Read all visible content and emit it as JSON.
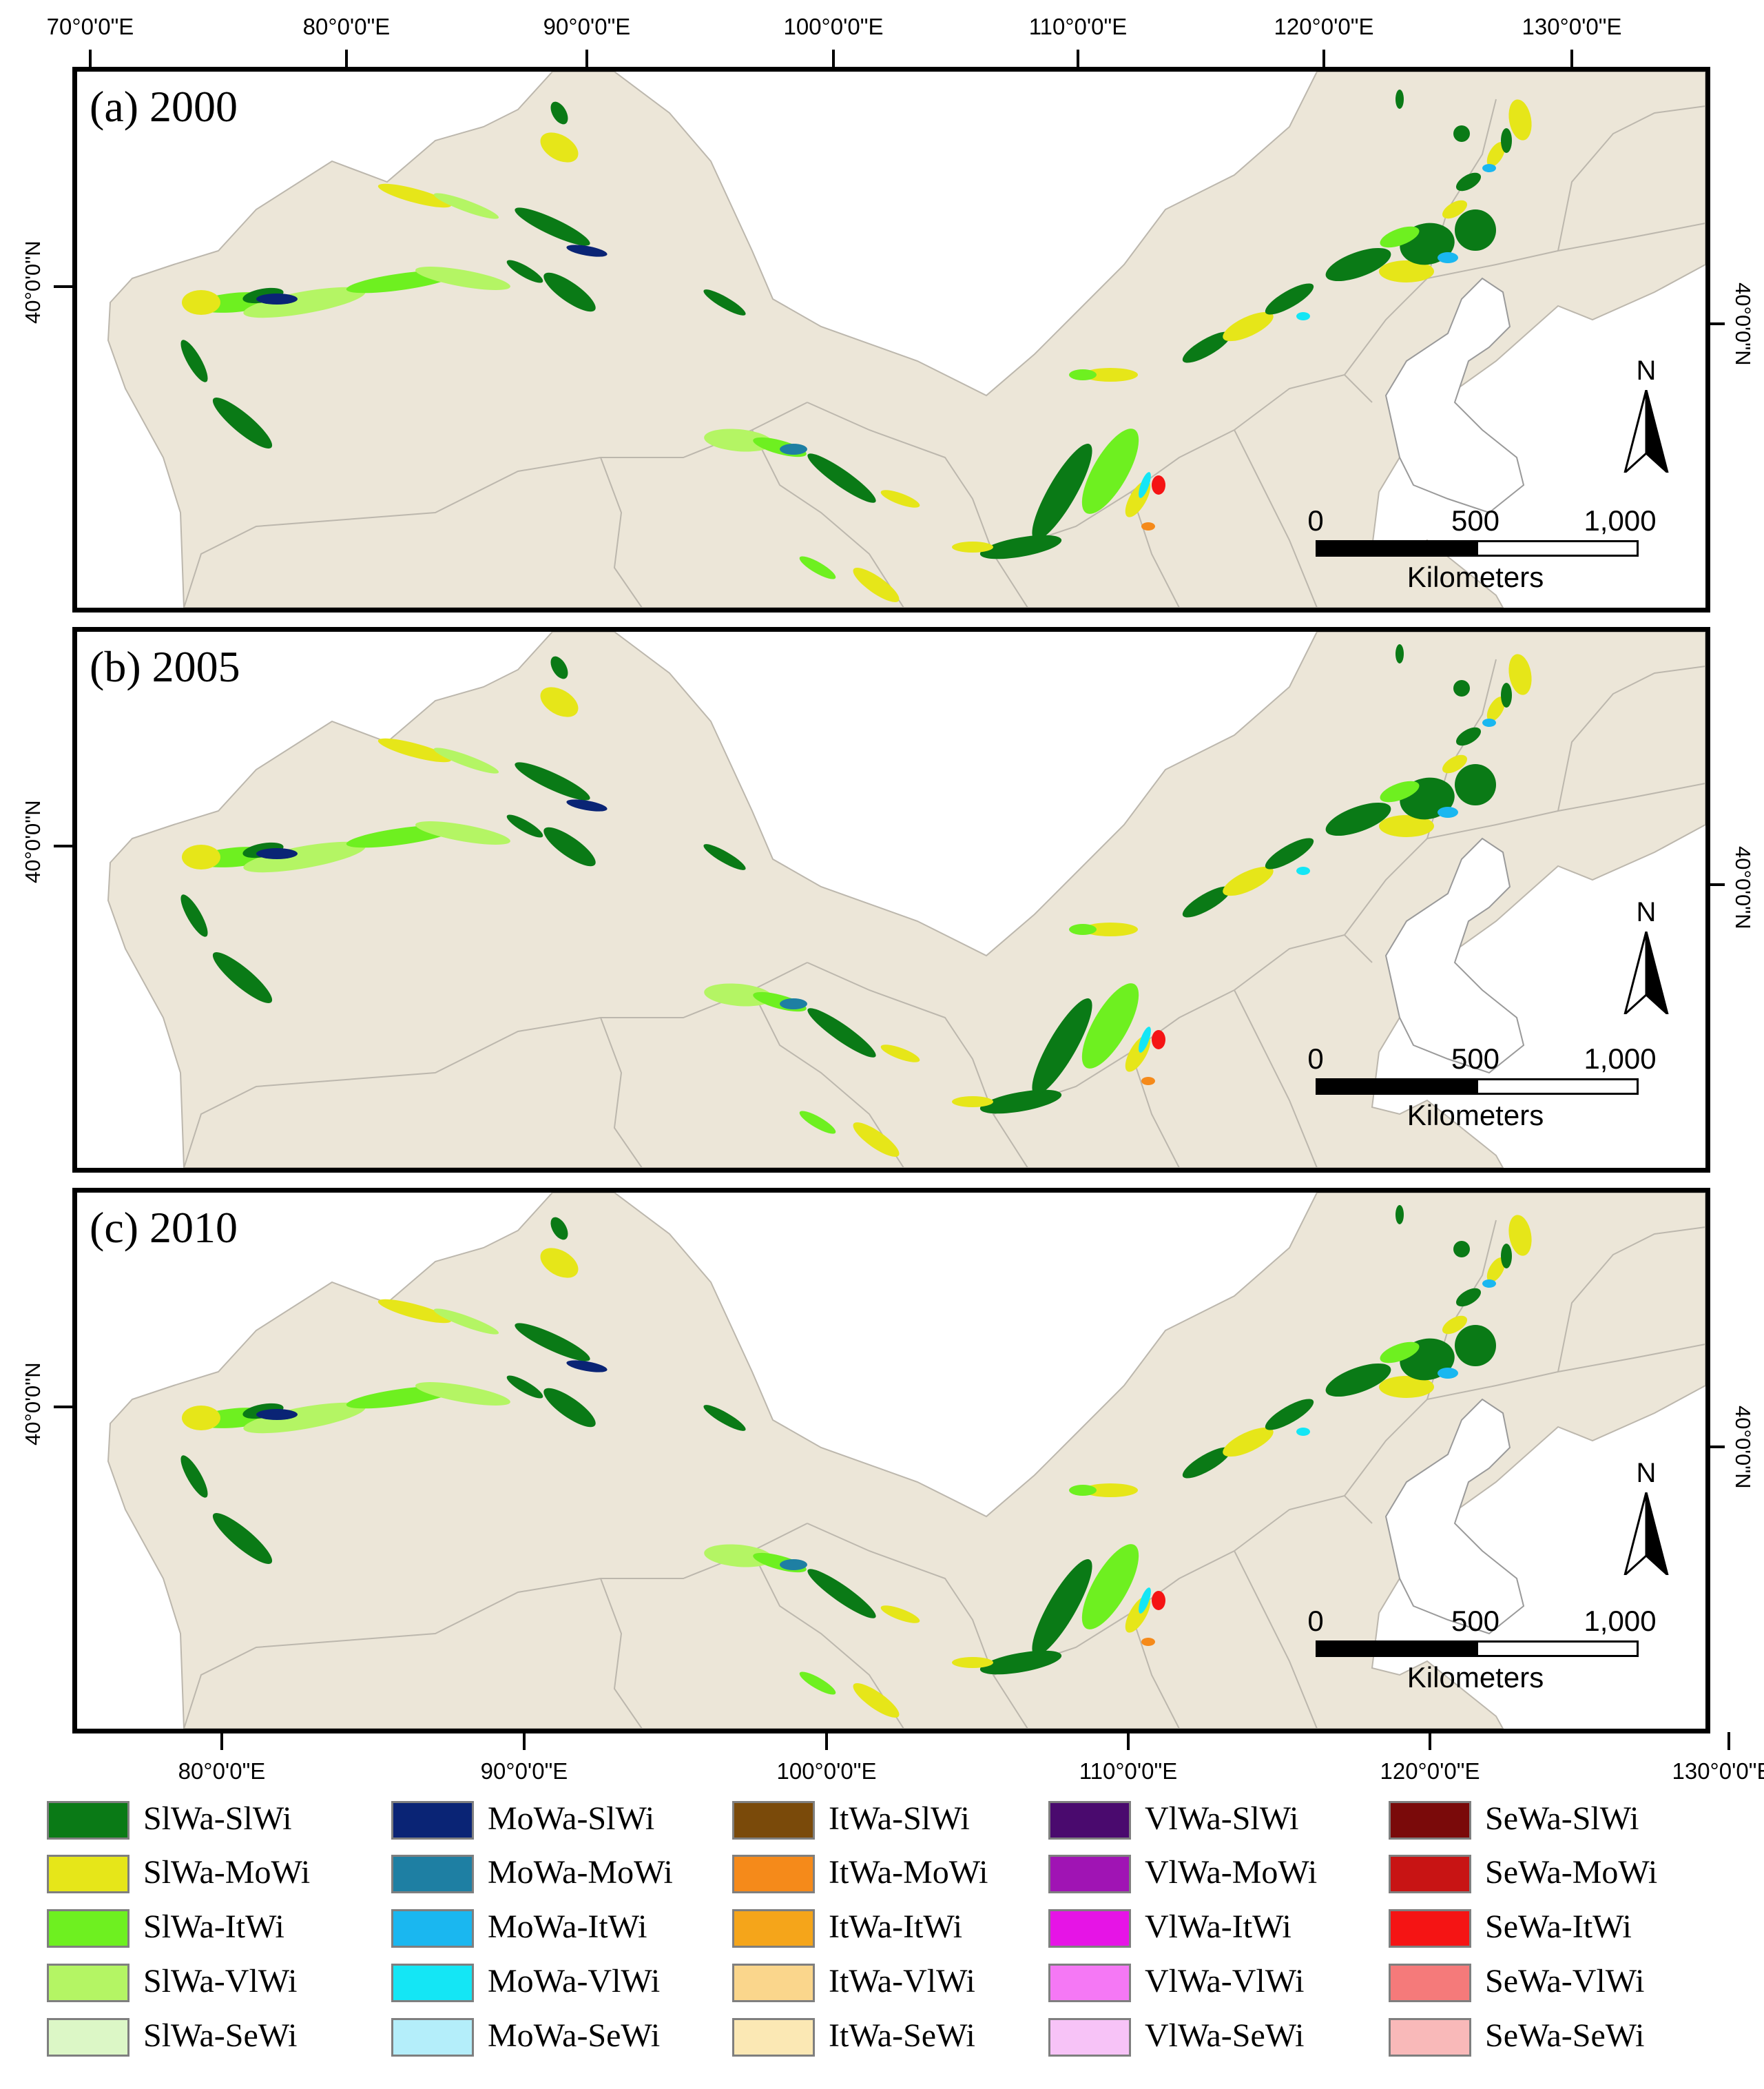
{
  "top_axis_labels": [
    "70°0'0\"E",
    "80°0'0\"E",
    "90°0'0\"E",
    "100°0'0\"E",
    "110°0'0\"E",
    "120°0'0\"E",
    "130°0'0\"E"
  ],
  "bottom_axis_labels": [
    "80°0'0\"E",
    "90°0'0\"E",
    "100°0'0\"E",
    "110°0'0\"E",
    "120°0'0\"E",
    "130°0'0\"E"
  ],
  "lat_label": "40°0'0\"N",
  "panels": [
    {
      "title": "(a) 2000"
    },
    {
      "title": "(b) 2005"
    },
    {
      "title": "(c) 2010"
    }
  ],
  "north_letter": "N",
  "scale": {
    "ticks": [
      "0",
      "500",
      "1,000"
    ],
    "units": "Kilometers"
  },
  "colors": {
    "land": "#ece6d8",
    "water": "#ffffff",
    "frame": "#000000",
    "boundary": "#bcb7ad"
  },
  "legend": [
    [
      {
        "label": "SlWa-SlWi",
        "color": "#0a7a16"
      },
      {
        "label": "SlWa-MoWi",
        "color": "#e6e619"
      },
      {
        "label": "SlWa-ItWi",
        "color": "#6ef020"
      },
      {
        "label": "SlWa-VlWi",
        "color": "#b4f564"
      },
      {
        "label": "SlWa-SeWi",
        "color": "#dcf7c6"
      }
    ],
    [
      {
        "label": "MoWa-SlWi",
        "color": "#0a2475"
      },
      {
        "label": "MoWa-MoWi",
        "color": "#1e7fa3"
      },
      {
        "label": "MoWa-ItWi",
        "color": "#1ab7f0"
      },
      {
        "label": "MoWa-VlWi",
        "color": "#14e6f5"
      },
      {
        "label": "MoWa-SeWi",
        "color": "#b4eefa"
      }
    ],
    [
      {
        "label": "ItWa-SlWi",
        "color": "#7a4a0a"
      },
      {
        "label": "ItWa-MoWi",
        "color": "#f58a1a"
      },
      {
        "label": "ItWa-ItWi",
        "color": "#f5a51a"
      },
      {
        "label": "ItWa-VlWi",
        "color": "#fad68c"
      },
      {
        "label": "ItWa-SeWi",
        "color": "#fbe8b4"
      }
    ],
    [
      {
        "label": "VlWa-SlWi",
        "color": "#4a0a6e"
      },
      {
        "label": "VlWa-MoWi",
        "color": "#a014b4"
      },
      {
        "label": "VlWa-ItWi",
        "color": "#e614e6"
      },
      {
        "label": "VlWa-VlWi",
        "color": "#f578f5"
      },
      {
        "label": "VlWa-SeWi",
        "color": "#f7c3f7"
      }
    ],
    [
      {
        "label": "SeWa-SlWi",
        "color": "#7a0a0a"
      },
      {
        "label": "SeWa-MoWi",
        "color": "#c81414"
      },
      {
        "label": "SeWa-ItWi",
        "color": "#f51414"
      },
      {
        "label": "SeWa-VlWi",
        "color": "#f57a7a"
      },
      {
        "label": "SeWa-SeWi",
        "color": "#f9b9b9"
      }
    ]
  ]
}
